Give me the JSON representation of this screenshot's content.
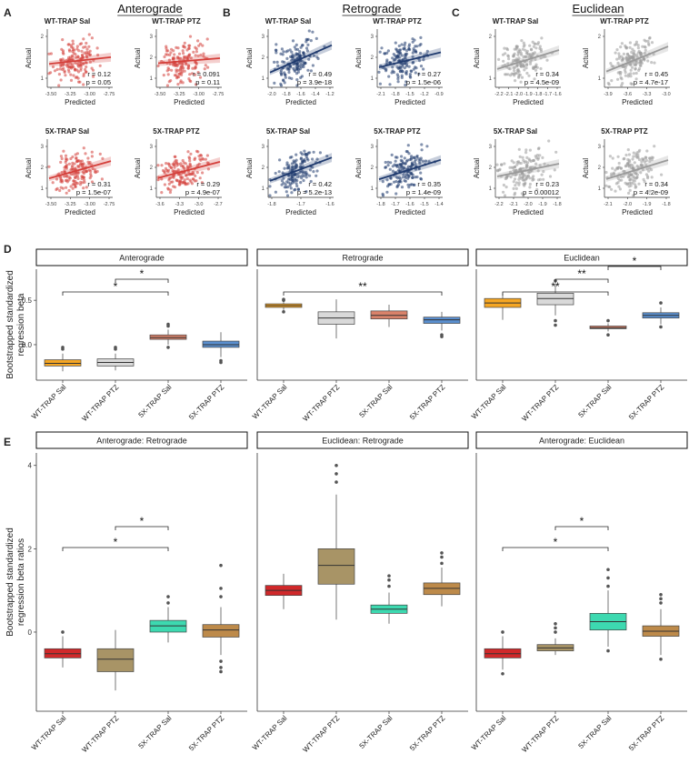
{
  "figure": {
    "panel_letters": {
      "A": "A",
      "B": "B",
      "C": "C",
      "D": "D",
      "E": "E"
    },
    "group_titles": [
      "Anterograde",
      "Retrograde",
      "Euclidean"
    ],
    "scatter_xlabel": "Predicted",
    "scatter_ylabel": "Actual",
    "d_ylabel": [
      "Bootstrapped standardized",
      "regression beta"
    ],
    "e_ylabel": [
      "Bootstrapped standardized",
      "regression beta ratios"
    ],
    "colors": {
      "anterograde": "#d43f3a",
      "retrograde": "#1f3a6e",
      "euclidean": "#9a9a9a",
      "wt_sal": "#f5a623",
      "wt_ptz": "#d9d9d9",
      "fx_sal": "#d9826a",
      "fx_ptz": "#5a8fcf",
      "e_wt_sal": "#d0282a",
      "e_wt_ptz": "#a89466",
      "e_fx_sal": "#3dd9b0",
      "e_fx_ptz": "#bd8a4a"
    }
  },
  "chart_data": [
    {
      "type": "scatter",
      "group": "Anterograde",
      "panels": [
        {
          "title": "WT-TRAP Sal",
          "r": "r = 0.12",
          "p": "p = 0.05",
          "xticks": [
            "-3.50",
            "-3.25",
            "-3.00",
            "-2.75"
          ],
          "yticks": [
            "1",
            "2"
          ]
        },
        {
          "title": "WT-TRAP PTZ",
          "r": "r = 0.091",
          "p": "p = 0.11",
          "xticks": [
            "-3.50",
            "-3.25",
            "-3.00",
            "-2.75"
          ],
          "yticks": [
            "1",
            "2",
            "3"
          ]
        },
        {
          "title": "5X-TRAP Sal",
          "r": "r = 0.31",
          "p": "p = 1.5e-07",
          "xticks": [
            "-3.50",
            "-3.25",
            "-3.00",
            "-2.75"
          ],
          "yticks": [
            "1",
            "2",
            "3"
          ]
        },
        {
          "title": "5X-TRAP PTZ",
          "r": "r = 0.29",
          "p": "p = 4.9e-07",
          "xticks": [
            "-3.6",
            "-3.3",
            "-3.0",
            "-2.7"
          ],
          "yticks": [
            "1",
            "2",
            "3"
          ]
        }
      ]
    },
    {
      "type": "scatter",
      "group": "Retrograde",
      "panels": [
        {
          "title": "WT-TRAP Sal",
          "r": "r = 0.49",
          "p": "p = 3.9e-18",
          "xticks": [
            "-2.0",
            "-1.8",
            "-1.6",
            "-1.4",
            "-1.2"
          ],
          "yticks": [
            "1",
            "2",
            "3"
          ]
        },
        {
          "title": "WT-TRAP PTZ",
          "r": "r = 0.27",
          "p": "p = 1.5e-06",
          "xticks": [
            "-2.1",
            "-1.8",
            "-1.5",
            "-1.2",
            "-0.9"
          ],
          "yticks": [
            "1",
            "2",
            "3"
          ]
        },
        {
          "title": "5X-TRAP Sal",
          "r": "r = 0.42",
          "p": "p = 5.2e-13",
          "xticks": [
            "-1.8",
            "-1.7",
            "-1.6"
          ],
          "yticks": [
            "1",
            "2",
            "3"
          ]
        },
        {
          "title": "5X-TRAP PTZ",
          "r": "r = 0.35",
          "p": "p = 1.4e-09",
          "xticks": [
            "-1.8",
            "-1.7",
            "-1.6",
            "-1.5",
            "-1.4"
          ],
          "yticks": [
            "1",
            "2",
            "3"
          ]
        }
      ]
    },
    {
      "type": "scatter",
      "group": "Euclidean",
      "panels": [
        {
          "title": "WT-TRAP Sal",
          "r": "r = 0.34",
          "p": "p = 4.5e-09",
          "xticks": [
            "-2.2",
            "-2.1",
            "-2.0",
            "-1.9",
            "-1.8",
            "-1.7",
            "-1.6"
          ],
          "yticks": [
            "1",
            "2"
          ]
        },
        {
          "title": "WT-TRAP PTZ",
          "r": "r = 0.45",
          "p": "p = 4.7e-17",
          "xticks": [
            "-3.9",
            "-3.6",
            "-3.3",
            "-3.0"
          ],
          "yticks": [
            "1",
            "2"
          ]
        },
        {
          "title": "5X-TRAP Sal",
          "r": "r = 0.23",
          "p": "p = 0.00012",
          "xticks": [
            "-2.2",
            "-2.1",
            "-2.0",
            "-1.9",
            "-1.8"
          ],
          "yticks": [
            "1",
            "2",
            "3"
          ]
        },
        {
          "title": "5X-TRAP PTZ",
          "r": "r = 0.34",
          "p": "p = 4.2e-09",
          "xticks": [
            "-2.1",
            "-2.0",
            "-1.9",
            "-1.8"
          ],
          "yticks": [
            "1",
            "2",
            "3"
          ]
        }
      ]
    },
    {
      "type": "box",
      "panel": "D",
      "facets": [
        "Anterograde",
        "Retrograde",
        "Euclidean"
      ],
      "categories": [
        "WT-TRAP Sal",
        "WT-TRAP PTZ",
        "5X-TRAP Sal",
        "5X-TRAP PTZ"
      ],
      "ylim": [
        -0.4,
        0.85
      ],
      "yticks": [
        0.0,
        0.5
      ],
      "ytick_labels": [
        "0.0",
        "0.5"
      ],
      "boxes": [
        [
          {
            "q1": -0.24,
            "med": -0.21,
            "q3": -0.17,
            "wlo": -0.3,
            "whi": -0.1,
            "outlo": [],
            "outhi": [
              -0.05,
              -0.03
            ]
          },
          {
            "q1": -0.24,
            "med": -0.2,
            "q3": -0.16,
            "wlo": -0.29,
            "whi": -0.1,
            "outlo": [],
            "outhi": [
              -0.05,
              -0.03
            ]
          },
          {
            "q1": 0.06,
            "med": 0.08,
            "q3": 0.11,
            "wlo": 0.0,
            "whi": 0.17,
            "outlo": [
              -0.03
            ],
            "outhi": [
              0.21,
              0.23
            ]
          },
          {
            "q1": -0.03,
            "med": 0.0,
            "q3": 0.04,
            "wlo": -0.14,
            "whi": 0.14,
            "outlo": [
              -0.18,
              -0.2
            ],
            "outhi": []
          }
        ],
        [
          {
            "q1": 0.42,
            "med": 0.44,
            "q3": 0.46,
            "wlo": 0.39,
            "whi": 0.49,
            "outlo": [
              0.37
            ],
            "outhi": [
              0.5,
              0.51
            ]
          },
          {
            "q1": 0.23,
            "med": 0.3,
            "q3": 0.37,
            "wlo": 0.07,
            "whi": 0.51,
            "outlo": [],
            "outhi": []
          },
          {
            "q1": 0.29,
            "med": 0.33,
            "q3": 0.38,
            "wlo": 0.2,
            "whi": 0.45,
            "outlo": [],
            "outhi": []
          },
          {
            "q1": 0.24,
            "med": 0.28,
            "q3": 0.31,
            "wlo": 0.16,
            "whi": 0.37,
            "outlo": [
              0.11,
              0.09
            ],
            "outhi": []
          }
        ],
        [
          {
            "q1": 0.42,
            "med": 0.47,
            "q3": 0.52,
            "wlo": 0.28,
            "whi": 0.58,
            "outlo": [],
            "outhi": []
          },
          {
            "q1": 0.45,
            "med": 0.52,
            "q3": 0.58,
            "wlo": 0.33,
            "whi": 0.68,
            "outlo": [
              0.27,
              0.22
            ],
            "outhi": [
              0.72
            ]
          },
          {
            "q1": 0.18,
            "med": 0.19,
            "q3": 0.21,
            "wlo": 0.15,
            "whi": 0.24,
            "outlo": [
              0.11
            ],
            "outhi": [
              0.27
            ]
          },
          {
            "q1": 0.3,
            "med": 0.33,
            "q3": 0.36,
            "wlo": 0.23,
            "whi": 0.42,
            "outlo": [
              0.2
            ],
            "outhi": [
              0.47
            ]
          }
        ]
      ],
      "significance": [
        [
          {
            "from": 0,
            "to": 2,
            "label": "*",
            "level": 0
          },
          {
            "from": 1,
            "to": 2,
            "label": "*",
            "level": 1
          }
        ],
        [
          {
            "from": 0,
            "to": 3,
            "label": "**",
            "level": 0
          }
        ],
        [
          {
            "from": 0,
            "to": 2,
            "label": "**",
            "level": 0
          },
          {
            "from": 1,
            "to": 2,
            "label": "**",
            "level": 1
          },
          {
            "from": 2,
            "to": 3,
            "label": "*",
            "level": 2
          }
        ]
      ]
    },
    {
      "type": "box",
      "panel": "E",
      "facets": [
        "Anterograde: Retrograde",
        "Euclidean: Retrograde",
        "Anterograde: Euclidean"
      ],
      "categories": [
        "WT-TRAP Sal",
        "WT-TRAP PTZ",
        "5X-TRAP Sal",
        "5X-TRAP PTZ"
      ],
      "ylim": [
        -1.9,
        4.3
      ],
      "yticks": [
        0,
        2,
        4
      ],
      "ytick_labels": [
        "0",
        "2",
        "4"
      ],
      "boxes": [
        [
          {
            "q1": -0.62,
            "med": -0.52,
            "q3": -0.4,
            "wlo": -0.85,
            "whi": -0.1,
            "outlo": [],
            "outhi": [
              0.0
            ]
          },
          {
            "q1": -0.95,
            "med": -0.65,
            "q3": -0.4,
            "wlo": -1.4,
            "whi": 0.05,
            "outlo": [],
            "outhi": []
          },
          {
            "q1": 0.0,
            "med": 0.15,
            "q3": 0.28,
            "wlo": -0.25,
            "whi": 0.6,
            "outlo": [],
            "outhi": [
              0.7,
              0.85
            ]
          },
          {
            "q1": -0.12,
            "med": 0.05,
            "q3": 0.18,
            "wlo": -0.55,
            "whi": 0.6,
            "outlo": [
              -0.7,
              -0.85,
              -0.95
            ],
            "outhi": [
              0.85,
              1.05,
              1.6
            ]
          }
        ],
        [
          {
            "q1": 0.88,
            "med": 1.0,
            "q3": 1.12,
            "wlo": 0.55,
            "whi": 1.4,
            "outlo": [],
            "outhi": []
          },
          {
            "q1": 1.15,
            "med": 1.6,
            "q3": 2.0,
            "wlo": 0.3,
            "whi": 3.3,
            "outlo": [],
            "outhi": [
              3.6,
              3.8,
              4.0
            ]
          },
          {
            "q1": 0.45,
            "med": 0.55,
            "q3": 0.65,
            "wlo": 0.2,
            "whi": 0.95,
            "outlo": [],
            "outhi": [
              1.1,
              1.25,
              1.35
            ]
          },
          {
            "q1": 0.9,
            "med": 1.05,
            "q3": 1.18,
            "wlo": 0.62,
            "whi": 1.55,
            "outlo": [],
            "outhi": [
              1.65,
              1.8,
              1.9
            ]
          }
        ],
        [
          {
            "q1": -0.62,
            "med": -0.52,
            "q3": -0.4,
            "wlo": -0.9,
            "whi": -0.1,
            "outlo": [
              -1.0
            ],
            "outhi": [
              0.0
            ]
          },
          {
            "q1": -0.45,
            "med": -0.38,
            "q3": -0.3,
            "wlo": -0.55,
            "whi": -0.15,
            "outlo": [],
            "outhi": [
              0.0,
              0.1,
              0.2
            ]
          },
          {
            "q1": 0.05,
            "med": 0.25,
            "q3": 0.45,
            "wlo": -0.35,
            "whi": 1.0,
            "outlo": [
              -0.45
            ],
            "outhi": [
              1.1,
              1.3,
              1.5
            ]
          },
          {
            "q1": -0.1,
            "med": 0.02,
            "q3": 0.15,
            "wlo": -0.55,
            "whi": 0.55,
            "outlo": [
              -0.65
            ],
            "outhi": [
              0.7,
              0.8,
              0.9
            ]
          }
        ]
      ],
      "significance": [
        [
          {
            "from": 0,
            "to": 2,
            "label": "*",
            "level": 0
          },
          {
            "from": 1,
            "to": 2,
            "label": "*",
            "level": 1
          }
        ],
        [],
        [
          {
            "from": 0,
            "to": 2,
            "label": "*",
            "level": 0
          },
          {
            "from": 1,
            "to": 2,
            "label": "*",
            "level": 1
          }
        ]
      ]
    }
  ]
}
